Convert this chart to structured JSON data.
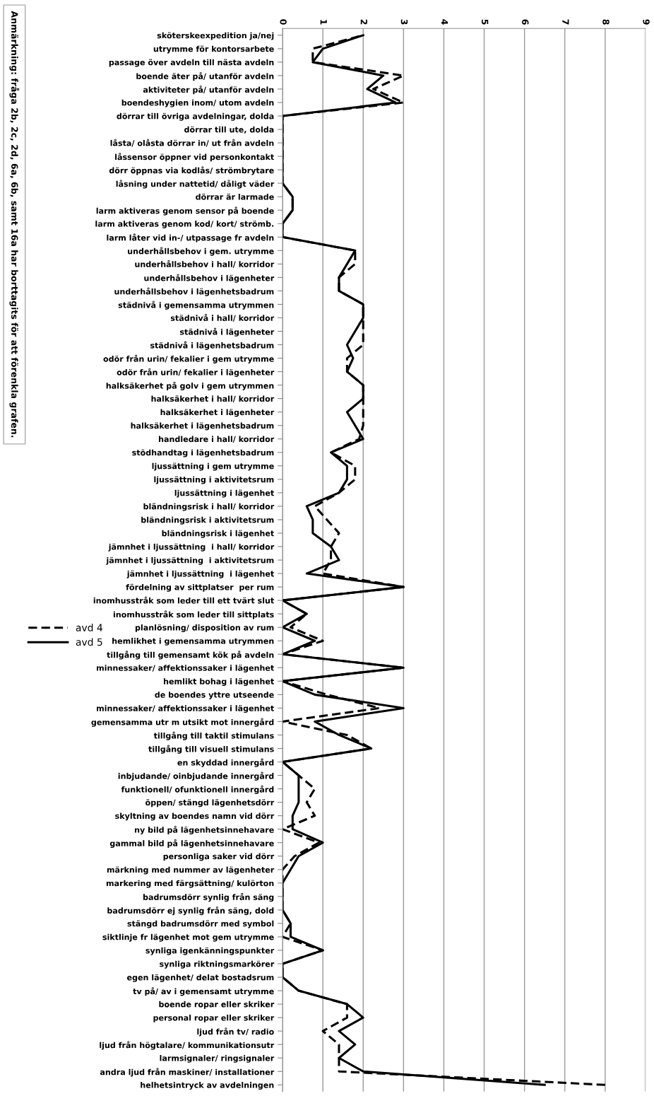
{
  "chart_data": {
    "type": "line",
    "orientation": "horizontal",
    "categories": [
      "sköterskeexpedition ja/nej",
      "utrymme för kontorsarbete",
      "passage över avdeln till nästa avdeln",
      "boende äter på/ utanför avdeln",
      "aktiviteter på/ utanför avdeln",
      "boendeshygien inom/ utom avdeln",
      "dörrar till övriga avdelningar, dolda",
      "dörrar till ute, dolda",
      "låsta/ olåsta dörrar in/ ut från avdeln",
      "låssensor öppner vid personkontakt",
      "dörr öppnas via kodlås/ strömbrytare",
      "låsning under nattetid/ dåligt väder",
      "dörrar är larmade",
      "larm aktiveras genom sensor på boende",
      "larm aktiveras genom kod/ kort/ strömb.",
      "larm låter vid in-/ utpassage fr avdeln",
      "underhållsbehov i gem. utrymme",
      "underhållsbehov i hall/ korridor",
      "underhållsbehov i lägenheter",
      "underhållsbehov i lägenhetsbadrum",
      "städnivå i gemensamma utrymmen",
      "städnivå i hall/ korridor",
      "städnivå i lägenheter",
      "städnivå i lägenhetsbadrum",
      "odör från urin/ fekalier i gem utrymme",
      "odör från urin/ fekalier i lägenheter",
      "halksäkerhet på golv i gem utrymmen",
      "halksäkerhet i hall/ korridor",
      "halksäkerhet i lägenheter",
      "halksäkerhet i lägenhetsbadrum",
      "handledare i hall/ korridor",
      "stödhandtag i lägenhetsbadrum",
      "ljussättning i gem utrymme",
      "ljussättning i aktivitetsrum",
      "ljussättning i lägenhet",
      "bländningsrisk i hall/ korridor",
      "bländningsrisk i aktivitetsrum",
      "bländningsrisk i lägenhet",
      "jämnhet i ljussättning  i hall/ korridor",
      "jämnhet i ljussättning  i aktivitetsrum",
      "jämnhet i ljussättning  i lägenhet",
      "fördelning av sittplatser  per rum",
      "inomhusstråk som leder till ett tvärt slut",
      "inomhusstråk som leder till sittplats",
      "planlösning/ disposition av rum",
      "hemlikhet i gemensamma utrymmen",
      "tillgång till gemensamt kök på avdeln",
      "minnessaker/ affektionssaker i lägenhet",
      "hemlikt bohag i lägenhet",
      "de boendes yttre utseende",
      "minnessaker/ affektionssaker i lägenhet",
      "gemensamma utr m utsikt mot innergård",
      "tillgång till taktil stimulans",
      "tillgång till visuell stimulans",
      "en skyddad innergård",
      "inbjudande/ oinbjudande innergård",
      "funktionell/ ofunktionell innergård",
      "öppen/ stängd lägenhetsdörr",
      "skyltning av boendes namn vid dörr",
      "ny bild på lägenhetsinnehavare",
      "gammal bild på lägenhetsinnehavare",
      "personliga saker vid dörr",
      "märkning med nummer av lägenheter",
      "markering med färgsättning/ kulörton",
      "badrumsdörr synlig från säng",
      "badrumsdörr ej synlig från säng, dold",
      "stängd badrumsdörr med symbol",
      "siktlinje fr lägenhet mot gem utrymme",
      "synliga igenkänningspunkter",
      "synliga riktningsmarkörer",
      "egen lägenhet/ delat bostadsrum",
      "tv på/ av i gemensamt utrymme",
      "boende ropar eller skriker",
      "personal ropar eller skriker",
      "ljud från tv/ radio",
      "ljud från högtalare/ kommunikationsutr",
      "larmsignaler/ ringsignaler",
      "andra ljud från maskiner/ installationer",
      "helhetsintryck av avdelningen"
    ],
    "series": [
      {
        "name": "avd 4",
        "color": "#000000",
        "line_style": "dashed",
        "values": [
          2,
          0.75,
          0.75,
          3,
          2.25,
          3,
          0,
          0,
          0,
          0,
          0,
          0,
          0.25,
          0.25,
          0,
          0,
          1.8,
          1.8,
          1.4,
          1.4,
          2,
          2,
          2,
          2,
          1.6,
          1.6,
          2,
          2,
          2,
          2,
          1.9,
          1.2,
          1.8,
          1.8,
          1.4,
          0.8,
          1.1,
          1.4,
          1.2,
          1.2,
          1,
          3,
          0,
          0.6,
          0.2,
          1,
          0,
          3,
          0,
          1.1,
          2.4,
          0,
          1.6,
          2.2,
          0,
          0.4,
          0.8,
          0.6,
          0.8,
          0,
          0.9,
          0.3,
          0,
          0,
          0,
          0,
          0.2,
          0,
          1,
          0,
          0,
          0.4,
          1.6,
          1.6,
          1,
          1.4,
          1.4,
          1.4,
          8
        ]
      },
      {
        "name": "avd 5",
        "color": "#000000",
        "line_style": "solid",
        "values": [
          2,
          1,
          0.75,
          2.5,
          2.1,
          2.8,
          0,
          0,
          0,
          0,
          0,
          0,
          0.25,
          0.25,
          0,
          0,
          1.8,
          1.6,
          1.4,
          1.4,
          2,
          2,
          1.8,
          1.6,
          1.75,
          1.6,
          2,
          2,
          1.6,
          1.8,
          2,
          1.2,
          1.6,
          1.6,
          1.4,
          0.6,
          0.75,
          0.75,
          1.2,
          1.4,
          0.6,
          3,
          0,
          0.6,
          0,
          0.8,
          0,
          3,
          0,
          0.8,
          3,
          0.8,
          1.4,
          2.2,
          0,
          0.4,
          0.4,
          0.4,
          0.25,
          0.25,
          1,
          0.4,
          0.2,
          0,
          0,
          0,
          0.2,
          0.2,
          1,
          0,
          0,
          0.4,
          1.6,
          2,
          1.4,
          1.8,
          1.4,
          2,
          6.5
        ]
      }
    ],
    "xlim": [
      0,
      9
    ],
    "xticks": [
      0,
      1,
      2,
      3,
      4,
      5,
      6,
      7,
      8,
      9
    ],
    "grid": "x",
    "legend": "left",
    "marker": "none",
    "annotations": [
      "Anmärkning: fråga 2b, 2c, 2d, 6a, 6b, samt 16a har borttagits för att förenkla grafen."
    ]
  }
}
